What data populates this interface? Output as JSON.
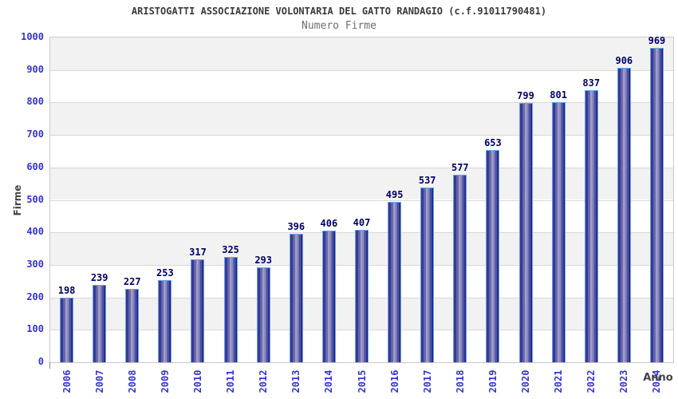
{
  "header": {
    "title": "ARISTOGATTI ASSOCIAZIONE VOLONTARIA DEL GATTO RANDAGIO (c.f.91011790481)",
    "subtitle": "Numero Firme"
  },
  "chart_data": {
    "type": "bar",
    "title": "Numero Firme",
    "categories": [
      "2006",
      "2007",
      "2008",
      "2009",
      "2010",
      "2011",
      "2012",
      "2013",
      "2014",
      "2015",
      "2016",
      "2017",
      "2018",
      "2019",
      "2020",
      "2021",
      "2022",
      "2023",
      "2024"
    ],
    "values": [
      198,
      239,
      227,
      253,
      317,
      325,
      293,
      396,
      406,
      407,
      495,
      537,
      577,
      653,
      799,
      801,
      837,
      906,
      969
    ],
    "xlabel": "Anno",
    "ylabel": "Firme",
    "ylim": [
      0,
      1000
    ],
    "ytick_step": 100,
    "grid": true,
    "legend_position": "none",
    "band_colors": [
      "#f2f2f2",
      "#ffffff"
    ],
    "colors": {
      "bar_dark": "#1f1f80",
      "bar_highlight": "#a7a7d7",
      "bar_border": "#63a4ee",
      "tick_label": "#3434d6",
      "value_label": "#000066",
      "grid_line": "#d8d8d8",
      "plot_border": "#c9c9c9",
      "title": "#3a3a3a",
      "subtitle": "#6e6e6e",
      "axis_title": "#444444"
    }
  }
}
